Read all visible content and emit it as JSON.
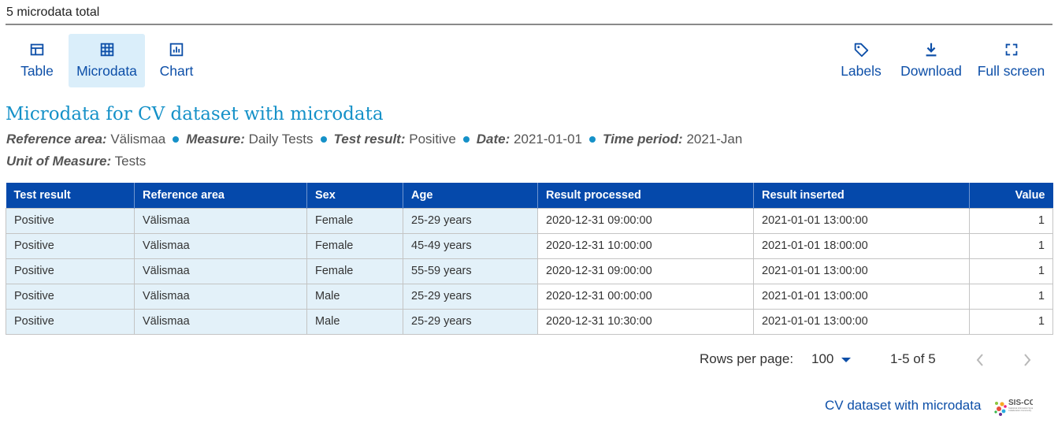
{
  "header": {
    "count_text": "5 microdata total"
  },
  "toolbar": {
    "table": {
      "label": "Table",
      "icon": "table-icon"
    },
    "microdata": {
      "label": "Microdata",
      "icon": "grid-icon",
      "active": true
    },
    "chart": {
      "label": "Chart",
      "icon": "chart-icon"
    },
    "labels": {
      "label": "Labels",
      "icon": "tag-icon"
    },
    "download": {
      "label": "Download",
      "icon": "download-icon"
    },
    "fullscreen": {
      "label": "Full screen",
      "icon": "fullscreen-icon"
    }
  },
  "title": "Microdata for CV dataset with microdata",
  "filters": [
    {
      "key": "Reference area:",
      "value": "Välismaa"
    },
    {
      "key": "Measure:",
      "value": "Daily Tests"
    },
    {
      "key": "Test result:",
      "value": "Positive"
    },
    {
      "key": "Date:",
      "value": "2021-01-01"
    },
    {
      "key": "Time period:",
      "value": "2021-Jan"
    }
  ],
  "unit": {
    "key": "Unit of Measure:",
    "value": "Tests"
  },
  "table": {
    "columns": [
      "Test result",
      "Reference area",
      "Sex",
      "Age",
      "Result processed",
      "Result inserted",
      "Value"
    ],
    "rows": [
      [
        "Positive",
        "Välismaa",
        "Female",
        "25-29 years",
        "2020-12-31 09:00:00",
        "2021-01-01 13:00:00",
        "1"
      ],
      [
        "Positive",
        "Välismaa",
        "Female",
        "45-49 years",
        "2020-12-31 10:00:00",
        "2021-01-01 18:00:00",
        "1"
      ],
      [
        "Positive",
        "Välismaa",
        "Female",
        "55-59 years",
        "2020-12-31 09:00:00",
        "2021-01-01 13:00:00",
        "1"
      ],
      [
        "Positive",
        "Välismaa",
        "Male",
        "25-29 years",
        "2020-12-31 00:00:00",
        "2021-01-01 13:00:00",
        "1"
      ],
      [
        "Positive",
        "Välismaa",
        "Male",
        "25-29 years",
        "2020-12-31 10:30:00",
        "2021-01-01 13:00:00",
        "1"
      ]
    ]
  },
  "pagination": {
    "rows_per_page_label": "Rows per page:",
    "rows_per_page_value": "100",
    "range": "1-5 of 5",
    "prev_icon": "chevron-left-icon",
    "next_icon": "chevron-right-icon"
  },
  "footer": {
    "dataset_link": "CV dataset with microdata",
    "logo_text": "SIS-CC",
    "logo_subtext": "Statistical Information System Collaboration Community"
  },
  "colors": {
    "accent": "#0d4fa8",
    "title": "#1591c8",
    "header_bg": "#0549ab",
    "highlight": "#e3f1f9",
    "active_bg": "#daeefa"
  }
}
